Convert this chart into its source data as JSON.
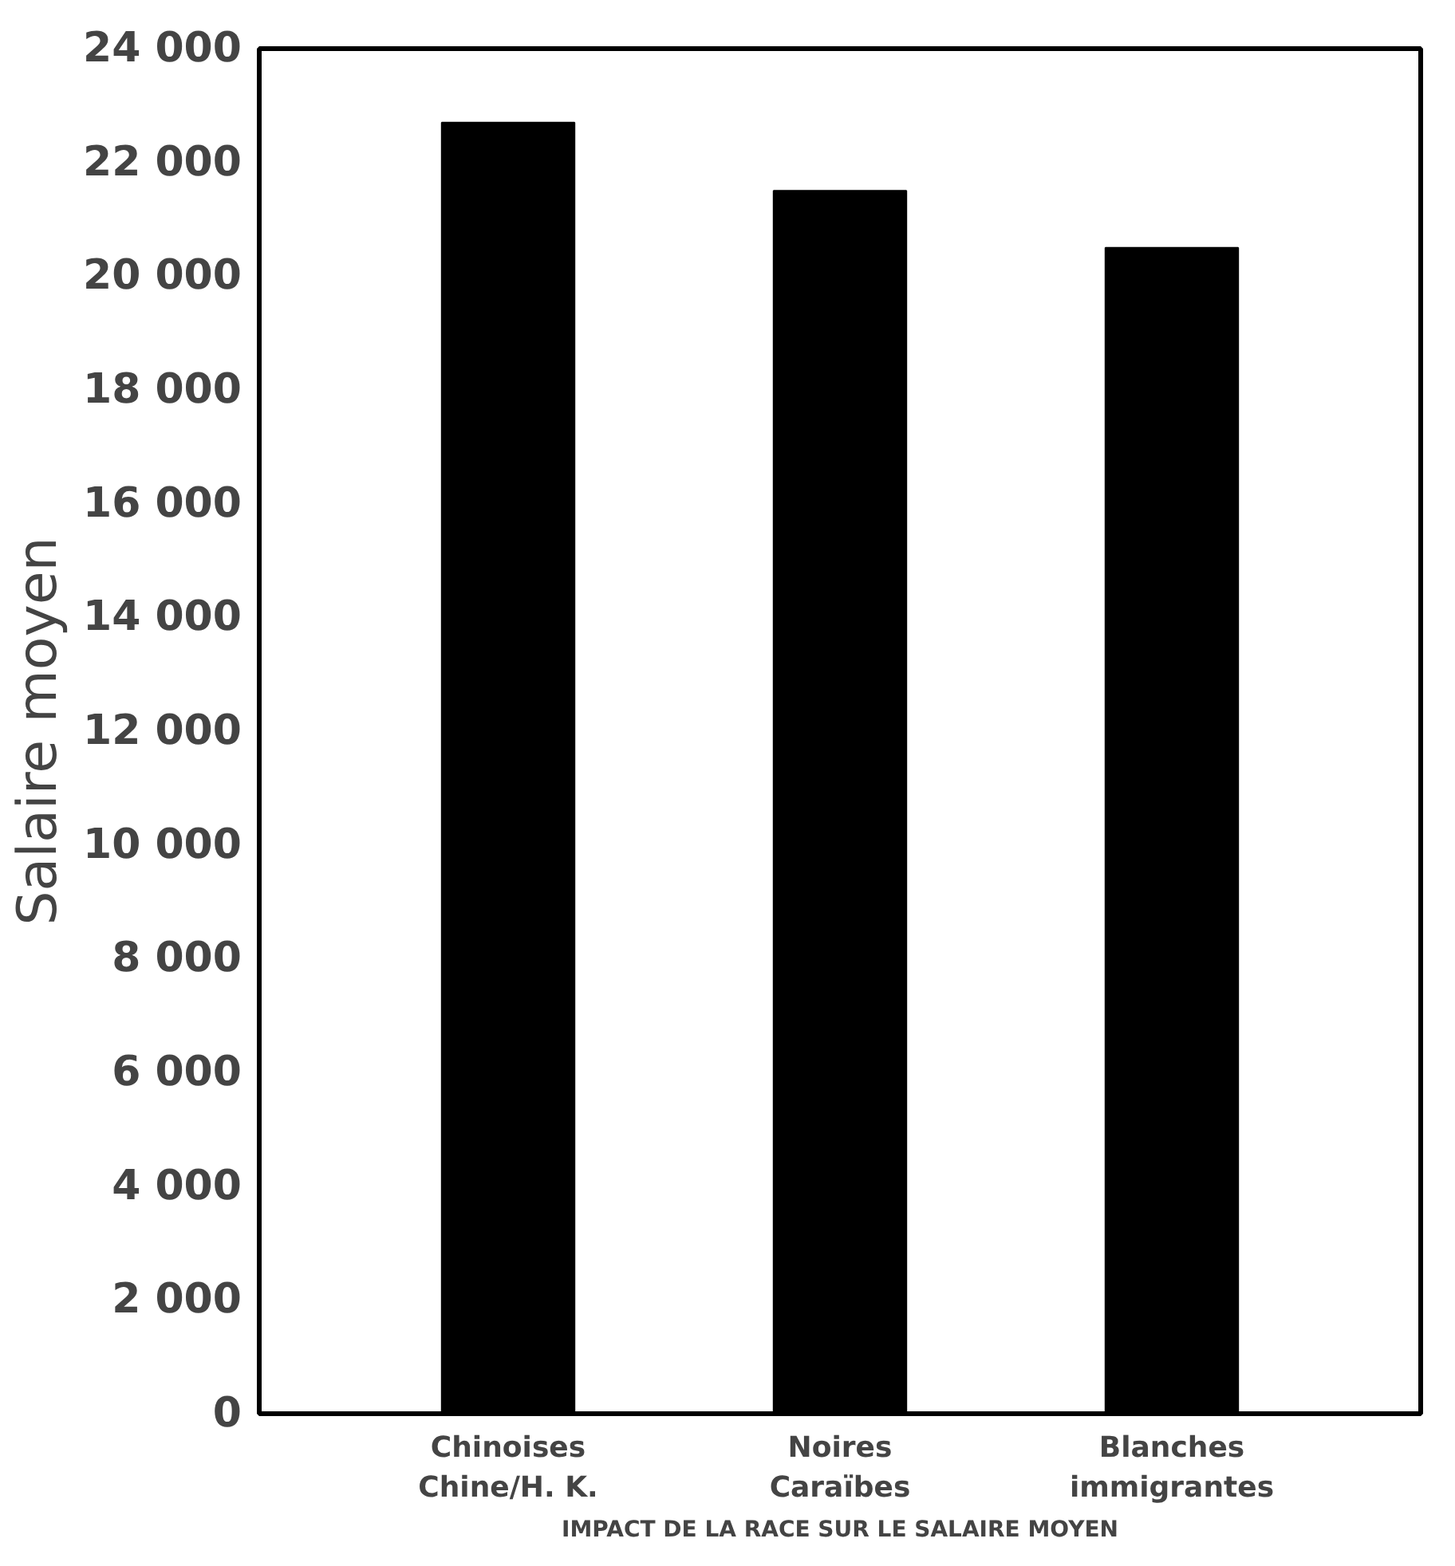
{
  "chart_data": {
    "type": "bar",
    "ylabel": "Salaire moyen",
    "xlabel": "IMPACT DE LA RACE SUR LE SALAIRE MOYEN",
    "categories": [
      "Chinoises\nChine/H. K.",
      "Noires\nCaraïbes",
      "Blanches\nimmigrantes"
    ],
    "values": [
      22700,
      21500,
      20500
    ],
    "color": "#000000",
    "ylim": [
      0,
      24000
    ],
    "yticks": [
      {
        "value": 0,
        "label": "0"
      },
      {
        "value": 2000,
        "label": "2 000"
      },
      {
        "value": 4000,
        "label": "4 000"
      },
      {
        "value": 6000,
        "label": "6 000"
      },
      {
        "value": 8000,
        "label": "8 000"
      },
      {
        "value": 10000,
        "label": "10 000"
      },
      {
        "value": 12000,
        "label": "12 000"
      },
      {
        "value": 14000,
        "label": "14 000"
      },
      {
        "value": 16000,
        "label": "16 000"
      },
      {
        "value": 18000,
        "label": "18 000"
      },
      {
        "value": 20000,
        "label": "20 000"
      },
      {
        "value": 22000,
        "label": "22 000"
      },
      {
        "value": 24000,
        "label": "24 000"
      }
    ],
    "grid": false
  }
}
